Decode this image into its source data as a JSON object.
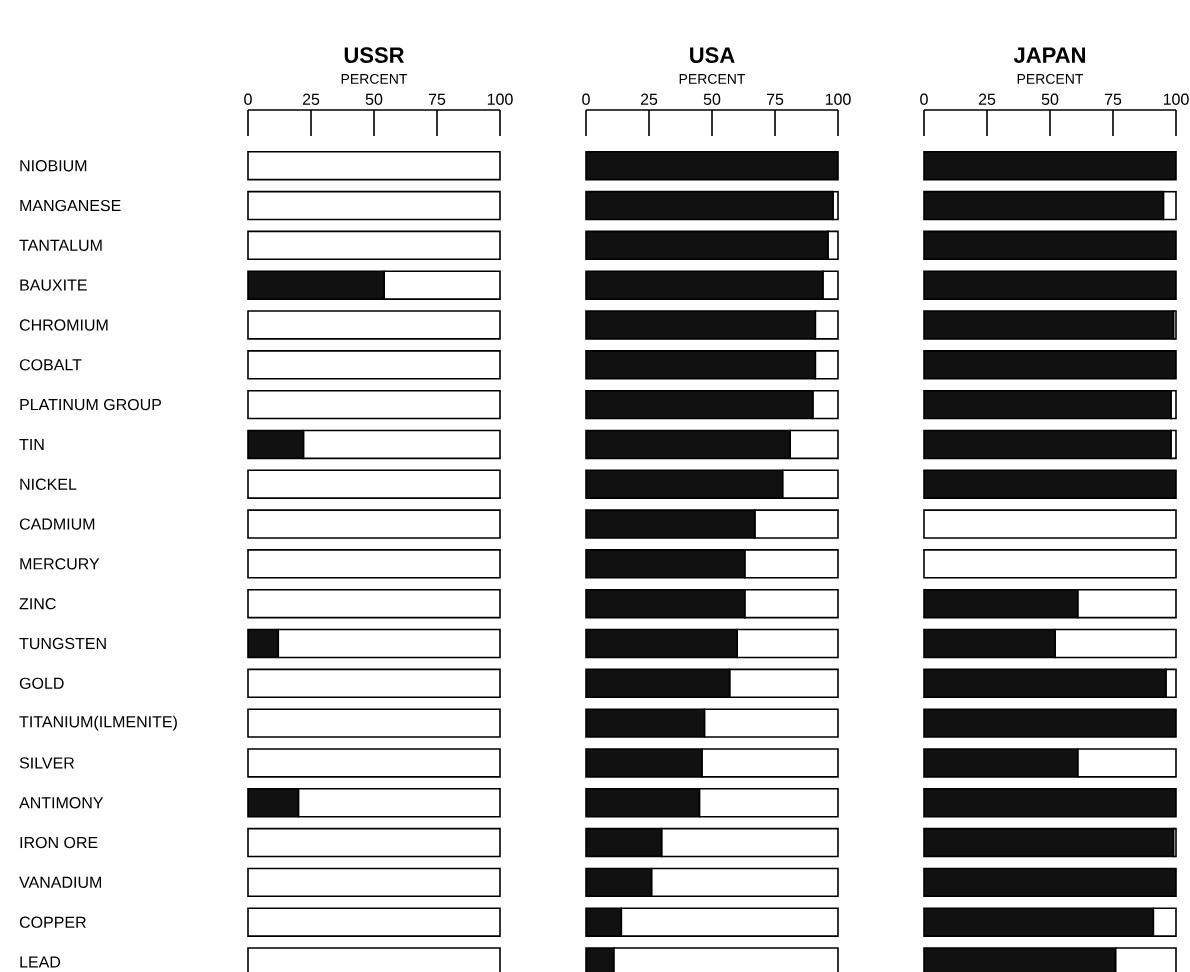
{
  "chart_data": [
    {
      "type": "bar",
      "orientation": "horizontal",
      "stacked": true,
      "title": "USSR",
      "xlabel": "PERCENT",
      "categories": [
        "NIOBIUM",
        "MANGANESE",
        "TANTALUM",
        "BAUXITE",
        "CHROMIUM",
        "COBALT",
        "PLATINUM GROUP",
        "TIN",
        "NICKEL",
        "CADMIUM",
        "MERCURY",
        "ZINC",
        "TUNGSTEN",
        "GOLD",
        "TITANIUM(ILMENITE)",
        "SILVER",
        "ANTIMONY",
        "IRON ORE",
        "VANADIUM",
        "COPPER",
        "LEAD"
      ],
      "series": [
        {
          "color": "#111111",
          "values": [
            0,
            0,
            0,
            54,
            0,
            0,
            0,
            22,
            0,
            0,
            0,
            0,
            12,
            0,
            0,
            0,
            20,
            0,
            0,
            0,
            0
          ]
        },
        {
          "color": "#ffffff",
          "values": [
            100,
            100,
            100,
            46,
            100,
            100,
            100,
            78,
            100,
            100,
            100,
            100,
            88,
            100,
            100,
            100,
            80,
            100,
            100,
            100,
            100
          ]
        }
      ],
      "xlim": [
        0,
        100
      ],
      "xticks": [
        0,
        25,
        50,
        75,
        100
      ]
    },
    {
      "type": "bar",
      "orientation": "horizontal",
      "stacked": true,
      "title": "USA",
      "xlabel": "PERCENT",
      "categories": [
        null,
        null,
        null,
        null,
        null,
        null,
        null,
        null,
        null,
        null,
        null,
        null,
        null,
        null,
        null,
        null,
        null,
        null,
        null,
        null,
        null
      ],
      "series": [
        {
          "color": "#111111",
          "values": [
            100,
            98,
            96,
            94,
            91,
            91,
            90,
            81,
            78,
            67,
            63,
            63,
            60,
            57,
            47,
            46,
            45,
            30,
            26,
            14,
            11
          ]
        },
        {
          "color": "#ffffff",
          "values": [
            0,
            2,
            4,
            6,
            9,
            9,
            10,
            19,
            22,
            33,
            37,
            37,
            40,
            43,
            53,
            54,
            55,
            70,
            74,
            86,
            89
          ]
        }
      ],
      "xlim": [
        0,
        100
      ],
      "xticks": [
        0,
        25,
        50,
        75,
        100
      ],
      "tick_labels": "x"
    },
    {
      "type": "bar",
      "orientation": "horizontal",
      "stacked": true,
      "title": "JAPAN",
      "xlabel": "PERCENT",
      "categories": [
        null,
        null,
        null,
        null,
        null,
        null,
        null,
        null,
        null,
        null,
        null,
        null,
        null,
        null,
        null,
        null,
        null,
        null,
        null,
        null,
        null
      ],
      "series": [
        {
          "color": "#111111",
          "values": [
            100,
            95,
            100,
            100,
            99,
            100,
            98,
            98,
            100,
            0,
            0,
            61,
            52,
            96,
            100,
            61,
            100,
            99,
            100,
            91,
            76
          ]
        },
        {
          "color": "#ffffff",
          "values": [
            0,
            5,
            0,
            0,
            1,
            0,
            2,
            2,
            0,
            100,
            100,
            39,
            48,
            4,
            0,
            39,
            0,
            1,
            0,
            9,
            24
          ]
        }
      ],
      "xlim": [
        0,
        100
      ],
      "xticks": [
        0,
        25,
        50,
        75,
        100
      ],
      "tick_labels": "x"
    }
  ]
}
